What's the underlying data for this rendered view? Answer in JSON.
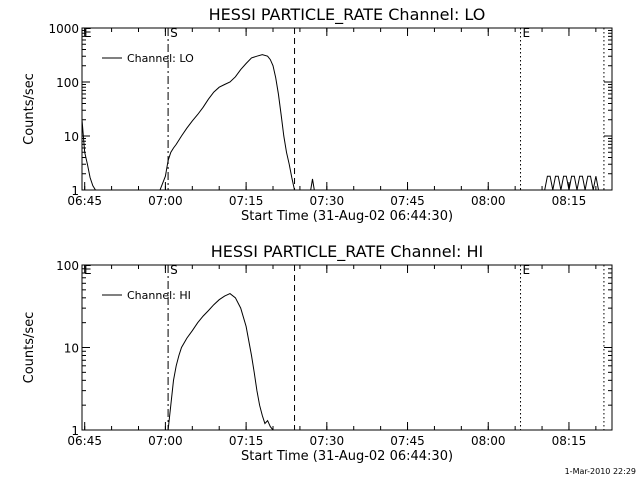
{
  "footer": {
    "timestamp": "1-Mar-2010 22:29"
  },
  "chart_data": [
    {
      "type": "line",
      "title": "HESSI PARTICLE_RATE Channel: LO",
      "xlabel": "Start Time (31-Aug-02 06:44:30)",
      "ylabel": "Counts/sec",
      "y_scale": "log",
      "ylim": [
        1,
        1000
      ],
      "xlim": [
        "06:44:30",
        "08:23:00"
      ],
      "x_ticks": [
        "06:45",
        "07:00",
        "07:15",
        "07:30",
        "07:45",
        "08:00",
        "08:15"
      ],
      "y_ticks": [
        "1",
        "10",
        "100",
        "1000"
      ],
      "legend": {
        "entries": [
          "Channel: LO"
        ],
        "placement": "top-left"
      },
      "markers": [
        {
          "label": "E",
          "time": "06:44:30",
          "style": "solid"
        },
        {
          "label": "S",
          "time": "07:00:30",
          "style": "dash-dot"
        },
        {
          "label": "",
          "time": "07:24:00",
          "style": "dashed"
        },
        {
          "label": "E",
          "time": "08:06:00",
          "style": "dotted"
        },
        {
          "label": "",
          "time": "08:21:30",
          "style": "dotted"
        }
      ],
      "series": [
        {
          "name": "Channel: LO",
          "segments": [
            {
              "x": [
                "06:44:30",
                "06:45:00",
                "06:45:30",
                "06:46:00",
                "06:46:30",
                "06:47:00"
              ],
              "y": [
                20,
                5,
                3,
                1.7,
                1.2,
                1
              ]
            },
            {
              "x": [
                "06:59:00",
                "07:00:00",
                "07:00:30",
                "07:01:00",
                "07:01:30",
                "07:02:00",
                "07:03:00",
                "07:04:00",
                "07:05:00",
                "07:06:00",
                "07:07:00",
                "07:08:00",
                "07:09:00",
                "07:10:00",
                "07:11:00",
                "07:12:00",
                "07:13:00",
                "07:14:00",
                "07:15:00",
                "07:16:00",
                "07:17:00",
                "07:18:00",
                "07:19:00",
                "07:19:30",
                "07:20:00",
                "07:20:30",
                "07:21:00",
                "07:21:30",
                "07:22:00",
                "07:22:30",
                "07:23:00",
                "07:23:30",
                "07:24:00"
              ],
              "y": [
                1,
                1.8,
                3.5,
                5,
                6,
                7,
                10,
                14,
                19,
                25,
                34,
                48,
                65,
                80,
                90,
                100,
                125,
                170,
                220,
                280,
                300,
                320,
                300,
                260,
                200,
                120,
                60,
                25,
                10,
                5,
                3,
                1.7,
                1
              ]
            },
            {
              "x": [
                "07:27:00",
                "07:27:20",
                "07:27:40"
              ],
              "y": [
                1,
                1.6,
                1
              ]
            },
            {
              "x": [
                "08:10:30",
                "08:11:00",
                "08:11:30",
                "08:12:00",
                "08:12:30",
                "08:13:00",
                "08:13:30",
                "08:14:00",
                "08:14:30",
                "08:15:00",
                "08:15:30",
                "08:16:00",
                "08:16:30",
                "08:17:00",
                "08:17:30",
                "08:18:00",
                "08:18:30",
                "08:19:00",
                "08:19:30",
                "08:20:00",
                "08:20:30"
              ],
              "y": [
                1,
                1.8,
                1.8,
                1,
                1.8,
                1.8,
                1,
                1.8,
                1.8,
                1,
                1.8,
                1.8,
                1,
                1.8,
                1.8,
                1,
                1.8,
                1.8,
                1,
                1.8,
                1
              ]
            }
          ]
        }
      ]
    },
    {
      "type": "line",
      "title": "HESSI PARTICLE_RATE Channel: HI",
      "xlabel": "Start Time (31-Aug-02 06:44:30)",
      "ylabel": "Counts/sec",
      "y_scale": "log",
      "ylim": [
        1,
        100
      ],
      "xlim": [
        "06:44:30",
        "08:23:00"
      ],
      "x_ticks": [
        "06:45",
        "07:00",
        "07:15",
        "07:30",
        "07:45",
        "08:00",
        "08:15"
      ],
      "y_ticks": [
        "1",
        "10",
        "100"
      ],
      "legend": {
        "entries": [
          "Channel: HI"
        ],
        "placement": "top-left"
      },
      "markers": [
        {
          "label": "E",
          "time": "06:44:30",
          "style": "solid"
        },
        {
          "label": "S",
          "time": "07:00:30",
          "style": "dash-dot"
        },
        {
          "label": "",
          "time": "07:24:00",
          "style": "dashed"
        },
        {
          "label": "E",
          "time": "08:06:00",
          "style": "dotted"
        },
        {
          "label": "",
          "time": "08:21:30",
          "style": "dotted"
        }
      ],
      "series": [
        {
          "name": "Channel: HI",
          "segments": [
            {
              "x": [
                "07:00:30",
                "07:01:00",
                "07:01:30",
                "07:02:00",
                "07:02:30",
                "07:03:00",
                "07:04:00",
                "07:05:00",
                "07:06:00",
                "07:07:00",
                "07:08:00",
                "07:09:00",
                "07:10:00",
                "07:11:00",
                "07:12:00",
                "07:13:00",
                "07:14:00",
                "07:15:00",
                "07:16:00",
                "07:16:30",
                "07:17:00",
                "07:17:30",
                "07:18:00",
                "07:18:30",
                "07:19:00",
                "07:19:30",
                "07:20:00"
              ],
              "y": [
                1,
                2,
                4,
                6,
                8,
                10,
                13,
                16,
                20,
                24,
                28,
                33,
                38,
                42,
                45,
                40,
                30,
                18,
                8,
                5,
                3,
                2,
                1.5,
                1.2,
                1.3,
                1.1,
                1
              ]
            }
          ]
        }
      ]
    }
  ]
}
